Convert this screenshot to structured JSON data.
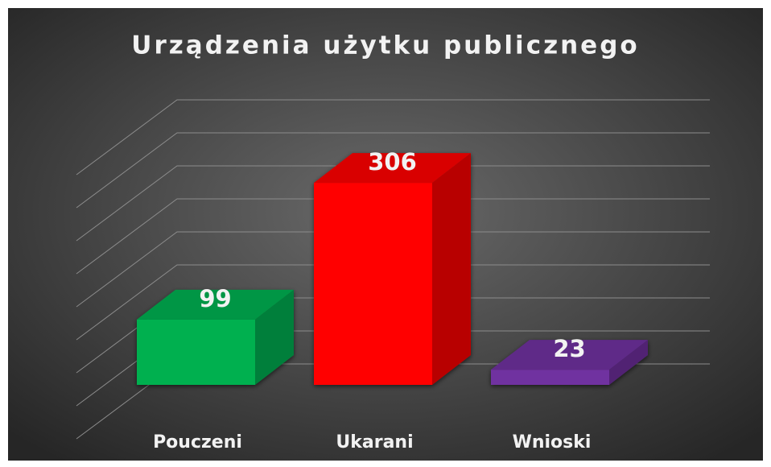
{
  "chart_data": {
    "type": "bar3d",
    "title": "Urządzenia użytku publicznego",
    "categories": [
      "Pouczeni",
      "Ukarani",
      "Wnioski"
    ],
    "values": [
      99,
      306,
      23
    ],
    "colors": [
      "#00b050",
      "#ff0000",
      "#7030a0"
    ],
    "ylim": [
      0,
      400
    ],
    "yticks": [
      0,
      50,
      100,
      150,
      200,
      250,
      300,
      350,
      400
    ],
    "grid": true
  }
}
